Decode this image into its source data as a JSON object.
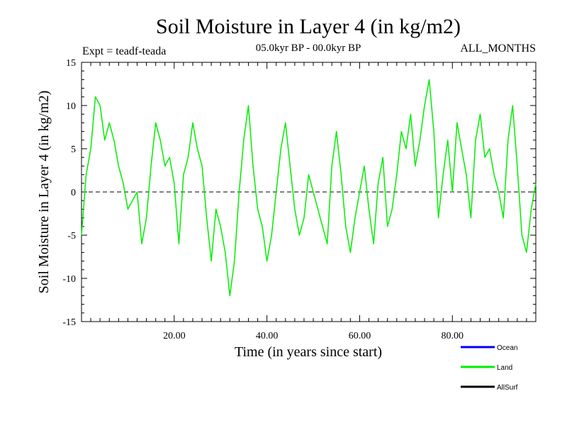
{
  "chart_data": {
    "type": "line",
    "title": "Soil Moisture in Layer 4 (in kg/m2)",
    "subtitle": "05.0kyr BP - 00.0kyr BP",
    "experiment": "Expt = teadf-teada",
    "months": "ALL_MONTHS",
    "xlabel": "Time (in years since start)",
    "ylabel": "Soil Moisture in Layer 4 (in kg/m2)",
    "xlim": [
      0,
      98
    ],
    "ylim": [
      -15,
      15
    ],
    "x_ticks": [
      20,
      40,
      60,
      80
    ],
    "x_tick_labels": [
      "20.00",
      "40.00",
      "60.00",
      "80.00"
    ],
    "y_ticks": [
      -15,
      -10,
      -5,
      0,
      5,
      10,
      15
    ],
    "y_tick_labels": [
      "-15",
      "-10",
      "-5",
      "0",
      "5",
      "10",
      "15"
    ],
    "reference_line": 0,
    "legend": [
      {
        "name": "Ocean",
        "label": "Ocean",
        "color": "#0000ff"
      },
      {
        "name": "Land",
        "label": "Land",
        "color": "#00ee00"
      },
      {
        "name": "AllSurf",
        "label": "AllSurf",
        "color": "#000000"
      }
    ],
    "series": [
      {
        "name": "Land",
        "color": "#00ee00",
        "x": [
          0,
          1,
          2,
          3,
          4,
          5,
          6,
          7,
          8,
          9,
          10,
          11,
          12,
          13,
          14,
          15,
          16,
          17,
          18,
          19,
          20,
          21,
          22,
          23,
          24,
          25,
          26,
          27,
          28,
          29,
          30,
          31,
          32,
          33,
          34,
          35,
          36,
          37,
          38,
          39,
          40,
          41,
          42,
          43,
          44,
          45,
          46,
          47,
          48,
          49,
          50,
          51,
          52,
          53,
          54,
          55,
          56,
          57,
          58,
          59,
          60,
          61,
          62,
          63,
          64,
          65,
          66,
          67,
          68,
          69,
          70,
          71,
          72,
          73,
          74,
          75,
          76,
          77,
          78,
          79,
          80,
          81,
          82,
          83,
          84,
          85,
          86,
          87,
          88,
          89,
          90,
          91,
          92,
          93,
          94,
          95,
          96,
          97,
          98
        ],
        "values": [
          -5,
          2,
          5,
          11,
          10,
          6,
          8,
          6,
          3,
          1,
          -2,
          -1,
          0,
          -6,
          -3,
          3,
          8,
          6,
          3,
          4,
          1,
          -6,
          2,
          4,
          8,
          5,
          3,
          -3,
          -8,
          -2,
          -4,
          -7,
          -12,
          -8,
          0,
          6,
          10,
          3,
          -2,
          -4,
          -8,
          -5,
          0,
          5,
          8,
          3,
          -2,
          -5,
          -3,
          2,
          0,
          -2,
          -4,
          -6,
          3,
          7,
          2,
          -4,
          -7,
          -3,
          0,
          3,
          -2,
          -6,
          1,
          4,
          -4,
          -2,
          2,
          7,
          5,
          9,
          3,
          6,
          10,
          13,
          7,
          -3,
          2,
          6,
          0,
          8,
          5,
          2,
          -3,
          6,
          9,
          4,
          5,
          2,
          0,
          -3,
          6,
          10,
          3,
          -5,
          -7,
          -2,
          1
        ]
      }
    ]
  }
}
